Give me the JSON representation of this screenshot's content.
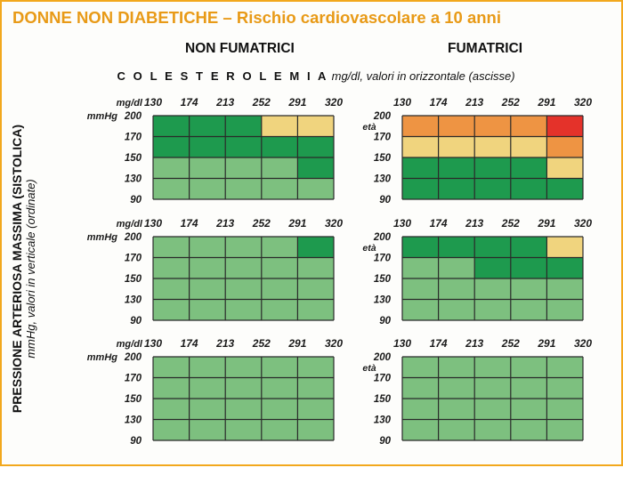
{
  "title": "DONNE NON DIABETICHE – Rischio cardiovascolare a 10 anni",
  "groups": {
    "non_smokers": "NON FUMATRICI",
    "smokers": "FUMATRICI"
  },
  "x_axis_caption": {
    "bold": "C O L E S T E R O L E M I A",
    "italic": " mg/dl, valori in orizzontale (ascisse)"
  },
  "y_axis_caption": {
    "bold": "PRESSIONE ARTERIOSA MASSIMA (SISTOLICA)",
    "italic": "mmHg, valori in verticale (ordinate)"
  },
  "colors": {
    "light_green": "#7dc07f",
    "dark_green": "#1e9a4e",
    "yellow": "#f0d47e",
    "orange": "#ee9443",
    "red": "#e4322a",
    "grid": "#2a2a2a"
  },
  "chart_data": {
    "type": "heatmap",
    "x_unit_label": "mg/dl",
    "y_unit_label": "mmHg",
    "age_label": "età",
    "x_ticks": [
      "130",
      "174",
      "213",
      "252",
      "291",
      "320"
    ],
    "y_ticks": [
      "200",
      "170",
      "150",
      "130",
      "90"
    ],
    "legend": {
      "L": "light green",
      "G": "dark green",
      "Y": "yellow",
      "O": "orange",
      "R": "red"
    },
    "panels": [
      {
        "group": "non_smokers",
        "row": 0,
        "cells": [
          [
            "G",
            "G",
            "G",
            "Y",
            "Y"
          ],
          [
            "G",
            "G",
            "G",
            "G",
            "G"
          ],
          [
            "L",
            "L",
            "L",
            "L",
            "G"
          ],
          [
            "L",
            "L",
            "L",
            "L",
            "L"
          ]
        ]
      },
      {
        "group": "smokers",
        "row": 0,
        "cells": [
          [
            "O",
            "O",
            "O",
            "O",
            "R"
          ],
          [
            "Y",
            "Y",
            "Y",
            "Y",
            "O"
          ],
          [
            "G",
            "G",
            "G",
            "G",
            "Y"
          ],
          [
            "G",
            "G",
            "G",
            "G",
            "G"
          ]
        ]
      },
      {
        "group": "non_smokers",
        "row": 1,
        "cells": [
          [
            "L",
            "L",
            "L",
            "L",
            "G"
          ],
          [
            "L",
            "L",
            "L",
            "L",
            "L"
          ],
          [
            "L",
            "L",
            "L",
            "L",
            "L"
          ],
          [
            "L",
            "L",
            "L",
            "L",
            "L"
          ]
        ]
      },
      {
        "group": "smokers",
        "row": 1,
        "cells": [
          [
            "G",
            "G",
            "G",
            "G",
            "Y"
          ],
          [
            "L",
            "L",
            "G",
            "G",
            "G"
          ],
          [
            "L",
            "L",
            "L",
            "L",
            "L"
          ],
          [
            "L",
            "L",
            "L",
            "L",
            "L"
          ]
        ]
      },
      {
        "group": "non_smokers",
        "row": 2,
        "cells": [
          [
            "L",
            "L",
            "L",
            "L",
            "L"
          ],
          [
            "L",
            "L",
            "L",
            "L",
            "L"
          ],
          [
            "L",
            "L",
            "L",
            "L",
            "L"
          ],
          [
            "L",
            "L",
            "L",
            "L",
            "L"
          ]
        ]
      },
      {
        "group": "smokers",
        "row": 2,
        "cells": [
          [
            "L",
            "L",
            "L",
            "L",
            "L"
          ],
          [
            "L",
            "L",
            "L",
            "L",
            "L"
          ],
          [
            "L",
            "L",
            "L",
            "L",
            "L"
          ],
          [
            "L",
            "L",
            "L",
            "L",
            "L"
          ]
        ]
      }
    ]
  }
}
